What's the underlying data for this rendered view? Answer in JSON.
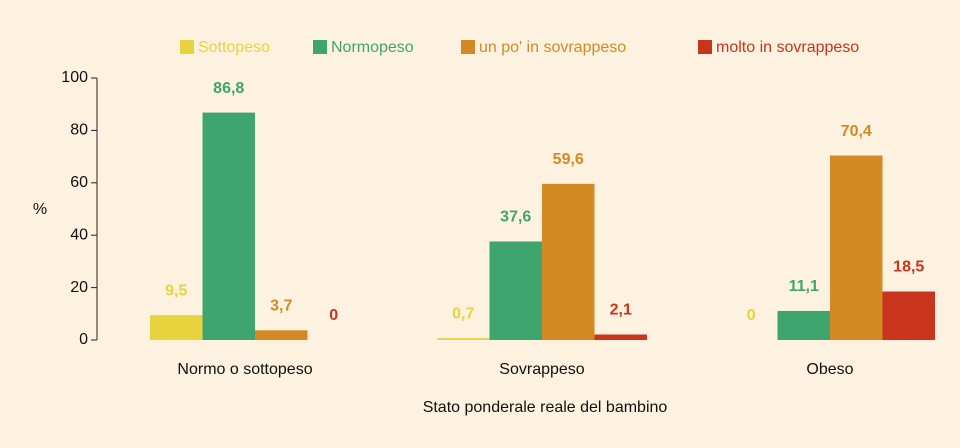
{
  "chart_data": {
    "type": "bar",
    "categories": [
      "Normo o sottopeso",
      "Sovrappeso",
      "Obeso"
    ],
    "series": [
      {
        "name": "Sottopeso",
        "color": "#e8d33f",
        "values": [
          9.5,
          0.7,
          0
        ],
        "value_labels": [
          "9,5",
          "0,7",
          "0"
        ]
      },
      {
        "name": "Normopeso",
        "color": "#3fa56f",
        "values": [
          86.8,
          37.6,
          11.1
        ],
        "value_labels": [
          "86,8",
          "37,6",
          "11,1"
        ]
      },
      {
        "name": "un po' in sovrappeso",
        "color": "#d48a24",
        "values": [
          3.7,
          59.6,
          70.4
        ],
        "value_labels": [
          "3,7",
          "59,6",
          "70,4"
        ]
      },
      {
        "name": "molto in sovrappeso",
        "color": "#c9341d",
        "values": [
          0,
          2.1,
          18.5
        ],
        "value_labels": [
          "0",
          "2,1",
          "18,5"
        ]
      }
    ],
    "ylabel": "%",
    "xlabel": "Stato ponderale reale del bambino",
    "ylim": [
      0,
      100
    ],
    "yticks": [
      0,
      20,
      40,
      60,
      80,
      100
    ],
    "grid": false
  }
}
